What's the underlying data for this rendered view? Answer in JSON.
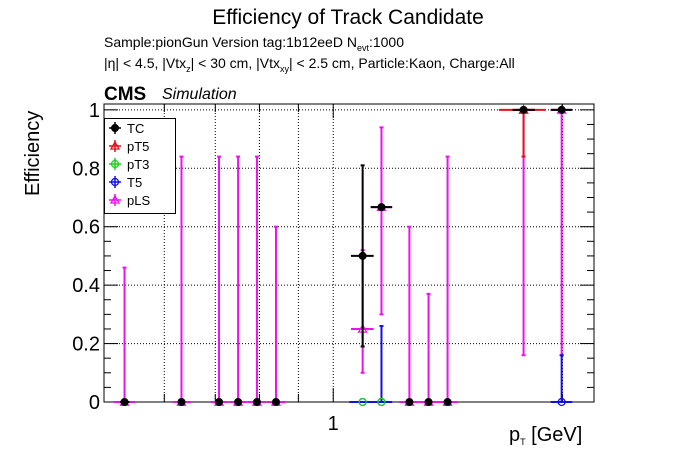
{
  "header": {
    "title": "Efficiency of Track Candidate",
    "sample_line": {
      "prefix": "Sample:pionGun   Version tag:1b12eeD  N",
      "sub": "evt",
      "suffix": ":1000"
    },
    "cuts_line": {
      "a": "|η| < 4.5, |Vtx",
      "a_sub": "z",
      "b": "| < 30 cm, |Vtx",
      "b_sub": "xy",
      "c": "| < 2.5 cm, Particle:Kaon, Charge:All"
    },
    "cms_label": "CMS",
    "sim_label": "Simulation"
  },
  "chart_data": {
    "type": "scatter",
    "x_scale": "log",
    "xlabel": {
      "main": "p",
      "sub": "T",
      "unit": " [GeV]"
    },
    "ylabel": "Efficiency",
    "xlim": [
      0.5,
      2.2
    ],
    "ylim": [
      0,
      1.02
    ],
    "x_tick_labels": [
      {
        "value": 1,
        "label": "1"
      }
    ],
    "y_tick_labels": [
      {
        "value": 0,
        "label": "0"
      },
      {
        "value": 0.2,
        "label": "0.2"
      },
      {
        "value": 0.4,
        "label": "0.4"
      },
      {
        "value": 0.6,
        "label": "0.6"
      },
      {
        "value": 0.8,
        "label": "0.8"
      },
      {
        "value": 1,
        "label": "1"
      }
    ],
    "grid": true,
    "legend_position": "top-left",
    "series": [
      {
        "name": "TC",
        "color": "#000000",
        "marker": "filled-circle",
        "points": [
          {
            "x": 0.532,
            "x_lo": 0.525,
            "x_hi": 0.54,
            "y": 0,
            "y_lo": 0,
            "y_hi": 0
          },
          {
            "x": 0.632,
            "y": 0,
            "y_lo": 0,
            "y_hi": 0
          },
          {
            "x": 0.708,
            "y": 0,
            "y_lo": 0,
            "y_hi": 0
          },
          {
            "x": 0.75,
            "y": 0,
            "y_lo": 0,
            "y_hi": 0
          },
          {
            "x": 0.794,
            "y": 0,
            "y_lo": 0,
            "y_hi": 0
          },
          {
            "x": 0.841,
            "y": 0,
            "y_lo": 0,
            "y_hi": 0
          },
          {
            "x": 1.093,
            "x_lo": 1.055,
            "x_hi": 1.13,
            "y": 0.5,
            "y_lo": 0.19,
            "y_hi": 0.81
          },
          {
            "x": 1.157,
            "x_lo": 1.12,
            "x_hi": 1.195,
            "y": 0.667,
            "y_lo": 0.667,
            "y_hi": 0.667
          },
          {
            "x": 1.259,
            "y": 0,
            "y_lo": 0,
            "y_hi": 0
          },
          {
            "x": 1.334,
            "y": 0,
            "y_lo": 0,
            "y_hi": 0
          },
          {
            "x": 1.413,
            "y": 0,
            "y_lo": 0,
            "y_hi": 0
          },
          {
            "x": 1.778,
            "x_lo": 1.72,
            "x_hi": 1.84,
            "y": 1,
            "y_lo": 1,
            "y_hi": 1
          },
          {
            "x": 1.995,
            "x_lo": 1.93,
            "x_hi": 2.06,
            "y": 1,
            "y_lo": 1,
            "y_hi": 1
          }
        ]
      },
      {
        "name": "pT5",
        "color": "#e8101a",
        "marker": "open-triangle",
        "points": [
          {
            "x": 1.778,
            "x_lo": 1.65,
            "x_hi": 1.9,
            "y": 1,
            "y_lo": 0.84,
            "y_hi": 1
          }
        ]
      },
      {
        "name": "pT3",
        "color": "#1bd11b",
        "marker": "open-circle",
        "points": [
          {
            "x": 1.093,
            "y": 0,
            "y_lo": 0,
            "y_hi": 0
          },
          {
            "x": 1.157,
            "y": 0,
            "y_lo": 0,
            "y_hi": 0
          }
        ]
      },
      {
        "name": "T5",
        "color": "#1010e0",
        "marker": "open-circle",
        "points": [
          {
            "x": 1.093,
            "x_lo": 1.05,
            "x_hi": 1.13,
            "y": 0,
            "y_lo": 0,
            "y_hi": 0
          },
          {
            "x": 1.157,
            "x_lo": 1.12,
            "x_hi": 1.195,
            "y": 0,
            "y_lo": 0,
            "y_hi": 0.26
          },
          {
            "x": 1.995,
            "x_lo": 1.93,
            "x_hi": 2.06,
            "y": 0,
            "y_lo": 0,
            "y_hi": 0.16
          }
        ]
      },
      {
        "name": "pLS",
        "color": "#ee10ee",
        "marker": "open-triangle",
        "points": [
          {
            "x": 0.532,
            "x_lo": 0.515,
            "x_hi": 0.55,
            "y": 0,
            "y_lo": 0,
            "y_hi": 0.46
          },
          {
            "x": 0.632,
            "x_lo": 0.615,
            "x_hi": 0.65,
            "y": 0,
            "y_lo": 0,
            "y_hi": 0.84
          },
          {
            "x": 0.708,
            "x_lo": 0.69,
            "x_hi": 0.728,
            "y": 0,
            "y_lo": 0,
            "y_hi": 0.84
          },
          {
            "x": 0.75,
            "x_lo": 0.73,
            "x_hi": 0.77,
            "y": 0,
            "y_lo": 0,
            "y_hi": 0.84
          },
          {
            "x": 0.794,
            "x_lo": 0.772,
            "x_hi": 0.816,
            "y": 0,
            "y_lo": 0,
            "y_hi": 0.84
          },
          {
            "x": 0.841,
            "x_lo": 0.818,
            "x_hi": 0.865,
            "y": 0,
            "y_lo": 0,
            "y_hi": 0.6
          },
          {
            "x": 1.093,
            "x_lo": 1.055,
            "x_hi": 1.13,
            "y": 0.25,
            "y_lo": 0.1,
            "y_hi": 0.52
          },
          {
            "x": 1.157,
            "x_lo": 1.12,
            "x_hi": 1.195,
            "y": 0.667,
            "y_lo": 0.3,
            "y_hi": 0.94
          },
          {
            "x": 1.259,
            "x_lo": 1.22,
            "x_hi": 1.3,
            "y": 0,
            "y_lo": 0,
            "y_hi": 0.6
          },
          {
            "x": 1.334,
            "x_lo": 1.295,
            "x_hi": 1.375,
            "y": 0,
            "y_lo": 0,
            "y_hi": 0.37
          },
          {
            "x": 1.413,
            "x_lo": 1.37,
            "x_hi": 1.455,
            "y": 0,
            "y_lo": 0,
            "y_hi": 0.84
          },
          {
            "x": 1.778,
            "x_lo": 1.72,
            "x_hi": 1.84,
            "y": 1,
            "y_lo": 0.16,
            "y_hi": 1
          },
          {
            "x": 1.995,
            "x_lo": 1.93,
            "x_hi": 2.06,
            "y": 1,
            "y_lo": 0.16,
            "y_hi": 1
          }
        ]
      }
    ]
  }
}
